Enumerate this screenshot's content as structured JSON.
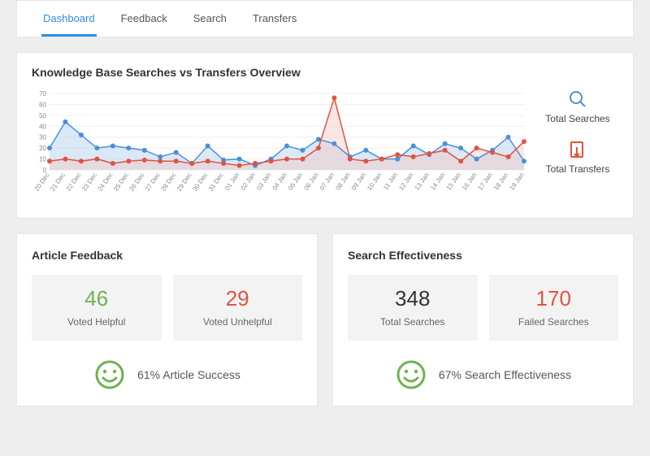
{
  "tabs": [
    {
      "label": "Dashboard",
      "active": true
    },
    {
      "label": "Feedback",
      "active": false
    },
    {
      "label": "Search",
      "active": false
    },
    {
      "label": "Transfers",
      "active": false
    }
  ],
  "chart": {
    "title": "Knowledge Base Searches vs Transfers Overview",
    "type": "area-line",
    "ylim": [
      0,
      70
    ],
    "ytick_step": 10,
    "background_color": "#ffffff",
    "grid_color": "#efefef",
    "x_labels": [
      "20 Dec",
      "21 Dec",
      "22 Dec",
      "23 Dec",
      "24 Dec",
      "25 Dec",
      "26 Dec",
      "27 Dec",
      "28 Dec",
      "29 Dec",
      "30 Dec",
      "31 Dec",
      "01 Jan",
      "02 Jan",
      "03 Jan",
      "04 Jan",
      "05 Jan",
      "06 Jan",
      "07 Jan",
      "08 Jan",
      "09 Jan",
      "10 Jan",
      "11 Jan",
      "12 Jan",
      "13 Jan",
      "14 Jan",
      "15 Jan",
      "16 Jan",
      "17 Jan",
      "18 Jan",
      "19 Jan"
    ],
    "series": [
      {
        "name": "Total Searches",
        "color": "#4a90d9",
        "fill": "#b8d4ef",
        "fill_opacity": 0.5,
        "marker": "circle",
        "marker_size": 3,
        "line_width": 1.5,
        "icon": "search-icon",
        "values": [
          20,
          44,
          32,
          20,
          22,
          20,
          18,
          12,
          16,
          6,
          22,
          9,
          10,
          4,
          10,
          22,
          18,
          28,
          24,
          12,
          18,
          10,
          10,
          22,
          14,
          24,
          20,
          10,
          18,
          30,
          8
        ]
      },
      {
        "name": "Total Transfers",
        "color": "#e15241",
        "fill": "#f2c4bf",
        "fill_opacity": 0.4,
        "marker": "circle",
        "marker_size": 3,
        "line_width": 1.5,
        "icon": "transfer-icon",
        "values": [
          8,
          10,
          8,
          10,
          6,
          8,
          9,
          8,
          8,
          6,
          8,
          6,
          4,
          6,
          8,
          10,
          10,
          20,
          66,
          10,
          8,
          10,
          14,
          12,
          15,
          18,
          8,
          20,
          16,
          12,
          26
        ]
      }
    ],
    "label_fontsize": 8
  },
  "feedback_panel": {
    "title": "Article Feedback",
    "stats": [
      {
        "value": "46",
        "label": "Voted Helpful",
        "color": "#6fb24f"
      },
      {
        "value": "29",
        "label": "Voted Unhelpful",
        "color": "#e15241"
      }
    ],
    "summary": {
      "icon_color": "#6fb24f",
      "text": "61% Article Success"
    }
  },
  "search_panel": {
    "title": "Search Effectiveness",
    "stats": [
      {
        "value": "348",
        "label": "Total Searches",
        "color": "#333333"
      },
      {
        "value": "170",
        "label": "Failed Searches",
        "color": "#e15241"
      }
    ],
    "summary": {
      "icon_color": "#6fb24f",
      "text": "67% Search Effectiveness"
    }
  }
}
